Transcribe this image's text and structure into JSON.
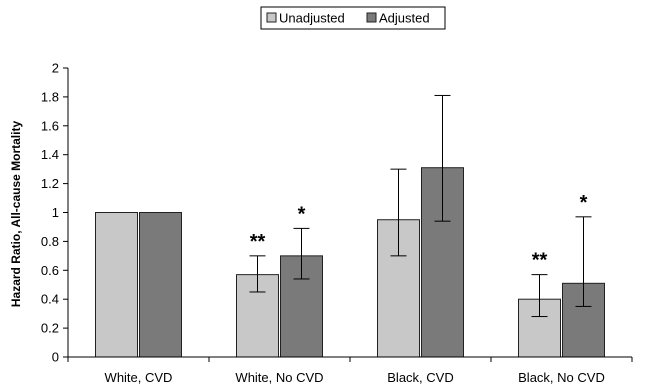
{
  "chart_data": {
    "type": "bar",
    "title": "",
    "xlabel": "",
    "ylabel": "Hazard Ratio, All-cause Mortality",
    "ylim": [
      0,
      2
    ],
    "yticks": [
      "0",
      "0.2",
      "0.4",
      "0.6",
      "0.8",
      "1",
      "1.2",
      "1.4",
      "1.6",
      "1.8",
      "2"
    ],
    "grid": false,
    "legend_position": "top-center",
    "categories": [
      "White, CVD",
      "White, No CVD",
      "Black, CVD",
      "Black, No CVD"
    ],
    "series": [
      {
        "name": "Unadjusted",
        "color": "#c8c8c8",
        "values": [
          1.0,
          0.57,
          0.95,
          0.4
        ],
        "error_low": [
          1.0,
          0.45,
          0.7,
          0.28
        ],
        "error_high": [
          1.0,
          0.7,
          1.3,
          0.57
        ],
        "annotations": [
          "",
          "**",
          "",
          "**"
        ]
      },
      {
        "name": "Adjusted",
        "color": "#7a7a7a",
        "values": [
          1.0,
          0.7,
          1.31,
          0.51
        ],
        "error_low": [
          1.0,
          0.54,
          0.94,
          0.35
        ],
        "error_high": [
          1.0,
          0.89,
          1.81,
          0.97
        ],
        "annotations": [
          "",
          "*",
          "",
          "*"
        ]
      }
    ]
  }
}
